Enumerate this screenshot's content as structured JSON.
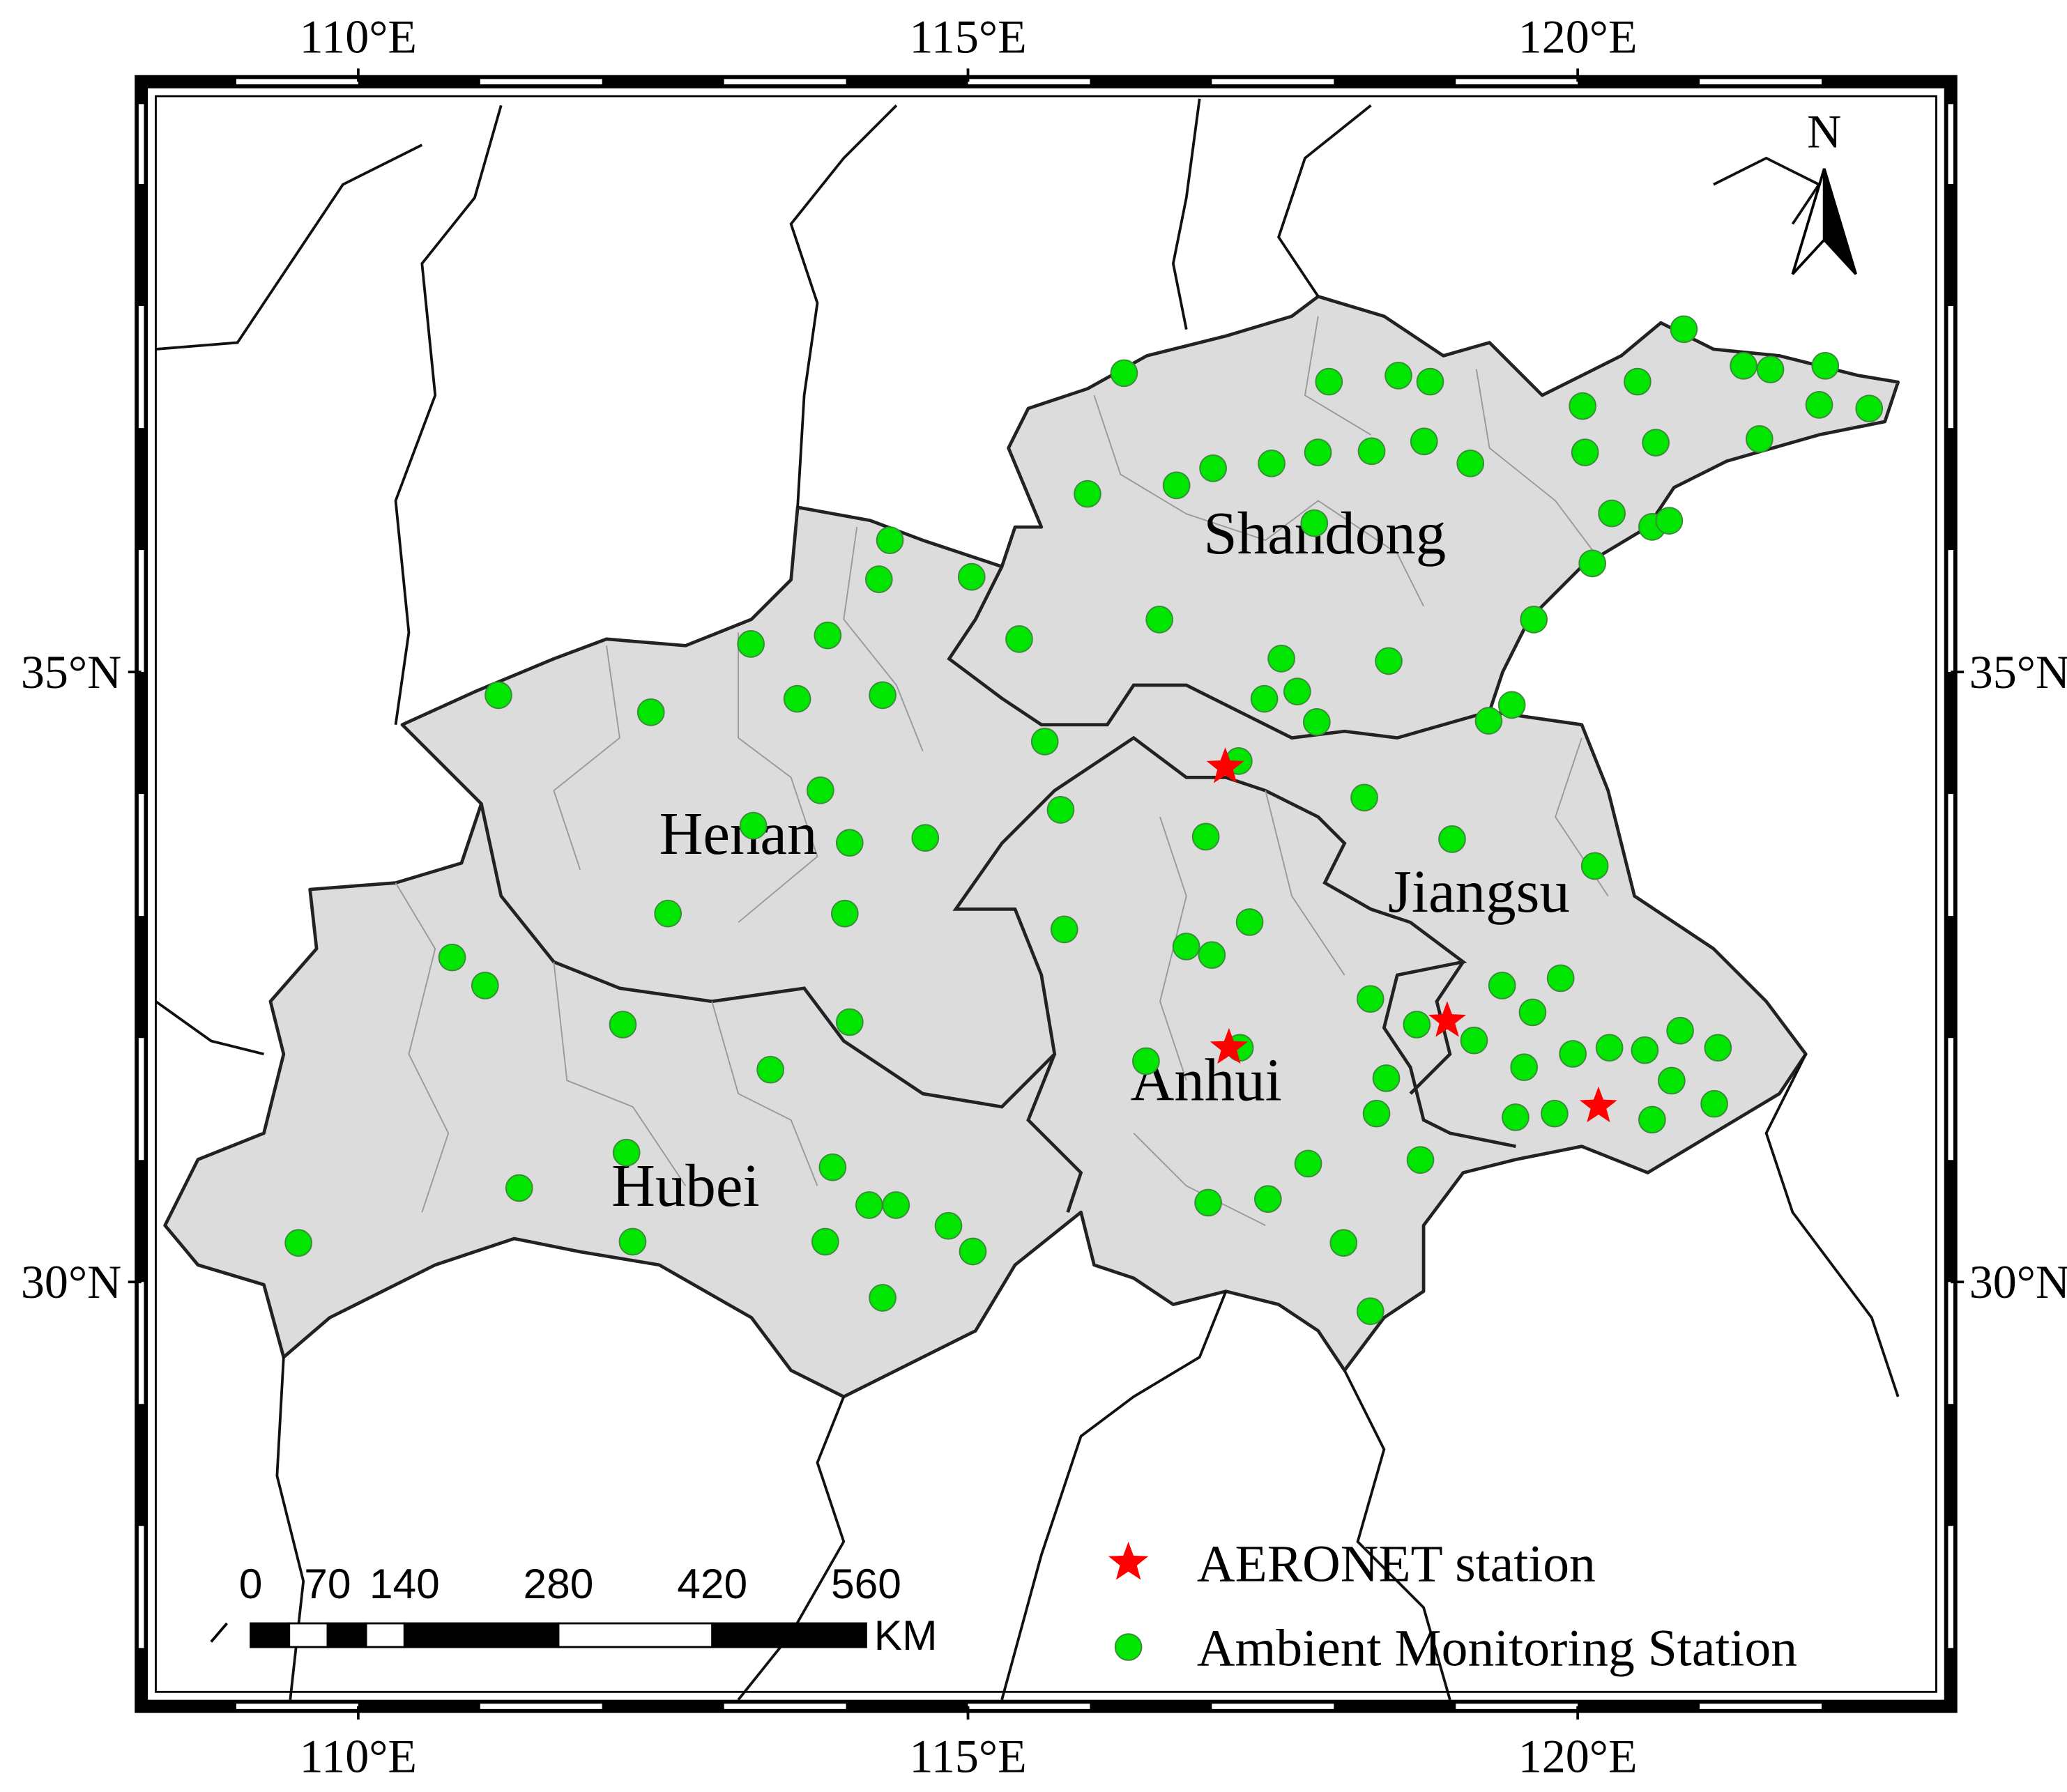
{
  "map": {
    "xlim": [
      108.34,
      122.94
    ],
    "ylim": [
      26.64,
      39.72
    ],
    "xticks": [
      {
        "value": 110,
        "label": "110°E"
      },
      {
        "value": 115,
        "label": "115°E"
      },
      {
        "value": 120,
        "label": "120°E"
      }
    ],
    "yticks": [
      {
        "value": 35,
        "label": "35°N"
      },
      {
        "value": 30,
        "label": "30°N"
      }
    ],
    "provinces": [
      "Shandong",
      "Henan",
      "Jiangsu",
      "Anhui",
      "Hubei"
    ],
    "north": "N",
    "scale": {
      "ticks": [
        0,
        70,
        140,
        280,
        420,
        560
      ],
      "unit": "KM"
    },
    "series": [
      {
        "name": "AERONET station",
        "color": "#ff0000",
        "marker": "star",
        "lon": [
          117.11,
          117.14,
          118.93,
          120.17
        ],
        "lat": [
          34.22,
          31.92,
          32.14,
          31.44
        ]
      },
      {
        "name": "Ambient Monitoring Station",
        "color": "#00e600",
        "marker": "circle",
        "lon": [
          111.15,
          109.51,
          110.77,
          111.04,
          111.32,
          112.17,
          112.2,
          112.25,
          112.54,
          112.4,
          113.22,
          113.24,
          113.38,
          113.83,
          113.89,
          114.03,
          113.99,
          114.03,
          113.79,
          113.6,
          113.85,
          114.3,
          114.27,
          114.36,
          115.03,
          114.65,
          114.19,
          114.41,
          114.84,
          115.04,
          114.3,
          115.42,
          115.63,
          115.76,
          115.79,
          116.28,
          115.98,
          116.57,
          116.71,
          117.01,
          117.49,
          117.87,
          117.96,
          118.31,
          118.74,
          118.53,
          118.79,
          119.12,
          117.84,
          117.57,
          117.7,
          117.43,
          117.86,
          118.45,
          119.27,
          119.46,
          119.64,
          120.12,
          120.06,
          120.04,
          120.49,
          120.87,
          120.64,
          120.28,
          120.61,
          120.75,
          121.36,
          121.58,
          122.03,
          121.98,
          122.39,
          121.49,
          117.22,
          116.95,
          117.31,
          116.79,
          117.0,
          117.23,
          116.46,
          116.97,
          117.46,
          117.79,
          118.08,
          118.3,
          118.25,
          118.97,
          120.14,
          118.3,
          118.68,
          119.15,
          119.38,
          119.63,
          119.86,
          119.56,
          119.96,
          120.26,
          120.55,
          120.84,
          121.15,
          120.77,
          120.61,
          121.12,
          119.81,
          119.49,
          118.71,
          118.43,
          118.35
        ],
        "lat": [
          34.81,
          30.32,
          32.66,
          32.43,
          30.77,
          32.11,
          31.06,
          30.33,
          33.02,
          34.67,
          35.23,
          33.74,
          31.74,
          30.33,
          30.94,
          32.13,
          33.02,
          33.6,
          34.03,
          34.78,
          35.3,
          34.81,
          35.76,
          36.08,
          35.78,
          33.64,
          30.63,
          30.63,
          30.46,
          30.25,
          29.87,
          35.27,
          34.43,
          33.87,
          32.89,
          37.45,
          36.46,
          35.43,
          36.53,
          36.67,
          36.71,
          36.8,
          37.38,
          36.81,
          36.89,
          37.43,
          37.38,
          36.71,
          36.22,
          35.11,
          34.84,
          34.78,
          34.59,
          35.09,
          34.6,
          34.73,
          35.43,
          35.89,
          36.8,
          37.18,
          37.38,
          37.81,
          36.88,
          36.3,
          36.19,
          36.24,
          37.51,
          37.48,
          37.51,
          37.19,
          37.16,
          36.91,
          34.27,
          33.65,
          32.95,
          32.75,
          32.68,
          31.92,
          31.81,
          30.65,
          30.68,
          30.97,
          30.32,
          29.76,
          33.97,
          33.63,
          33.41,
          32.32,
          32.11,
          31.98,
          32.43,
          32.21,
          32.49,
          31.76,
          31.87,
          31.92,
          31.9,
          32.06,
          31.92,
          31.65,
          31.33,
          31.46,
          31.38,
          31.35,
          31.0,
          31.67,
          31.38
        ]
      }
    ]
  }
}
